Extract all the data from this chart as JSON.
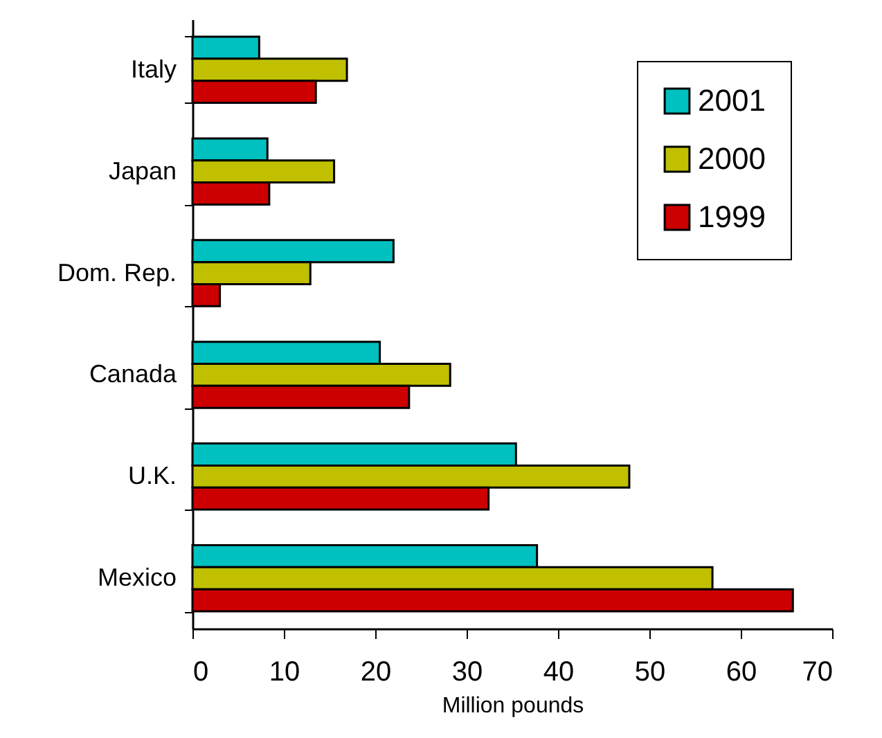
{
  "chart_data": {
    "type": "bar",
    "orientation": "horizontal",
    "xlabel": "Million pounds",
    "categories": [
      "Italy",
      "Japan",
      "Dom. Rep.",
      "Canada",
      "U.K.",
      "Mexico"
    ],
    "series": [
      {
        "name": "2001",
        "color": "#00c0c0",
        "values": [
          7.3,
          8.2,
          22.0,
          20.5,
          35.4,
          37.7
        ]
      },
      {
        "name": "2000",
        "color": "#c0c000",
        "values": [
          16.9,
          15.5,
          12.9,
          28.2,
          47.8,
          56.9
        ]
      },
      {
        "name": "1999",
        "color": "#cc0000",
        "values": [
          13.5,
          8.4,
          3.0,
          23.7,
          32.4,
          65.7
        ]
      }
    ],
    "xlim": [
      0,
      70
    ],
    "xticks": [
      0,
      10,
      20,
      30,
      40,
      50,
      60,
      70
    ],
    "grid": false,
    "legend": "top right"
  }
}
